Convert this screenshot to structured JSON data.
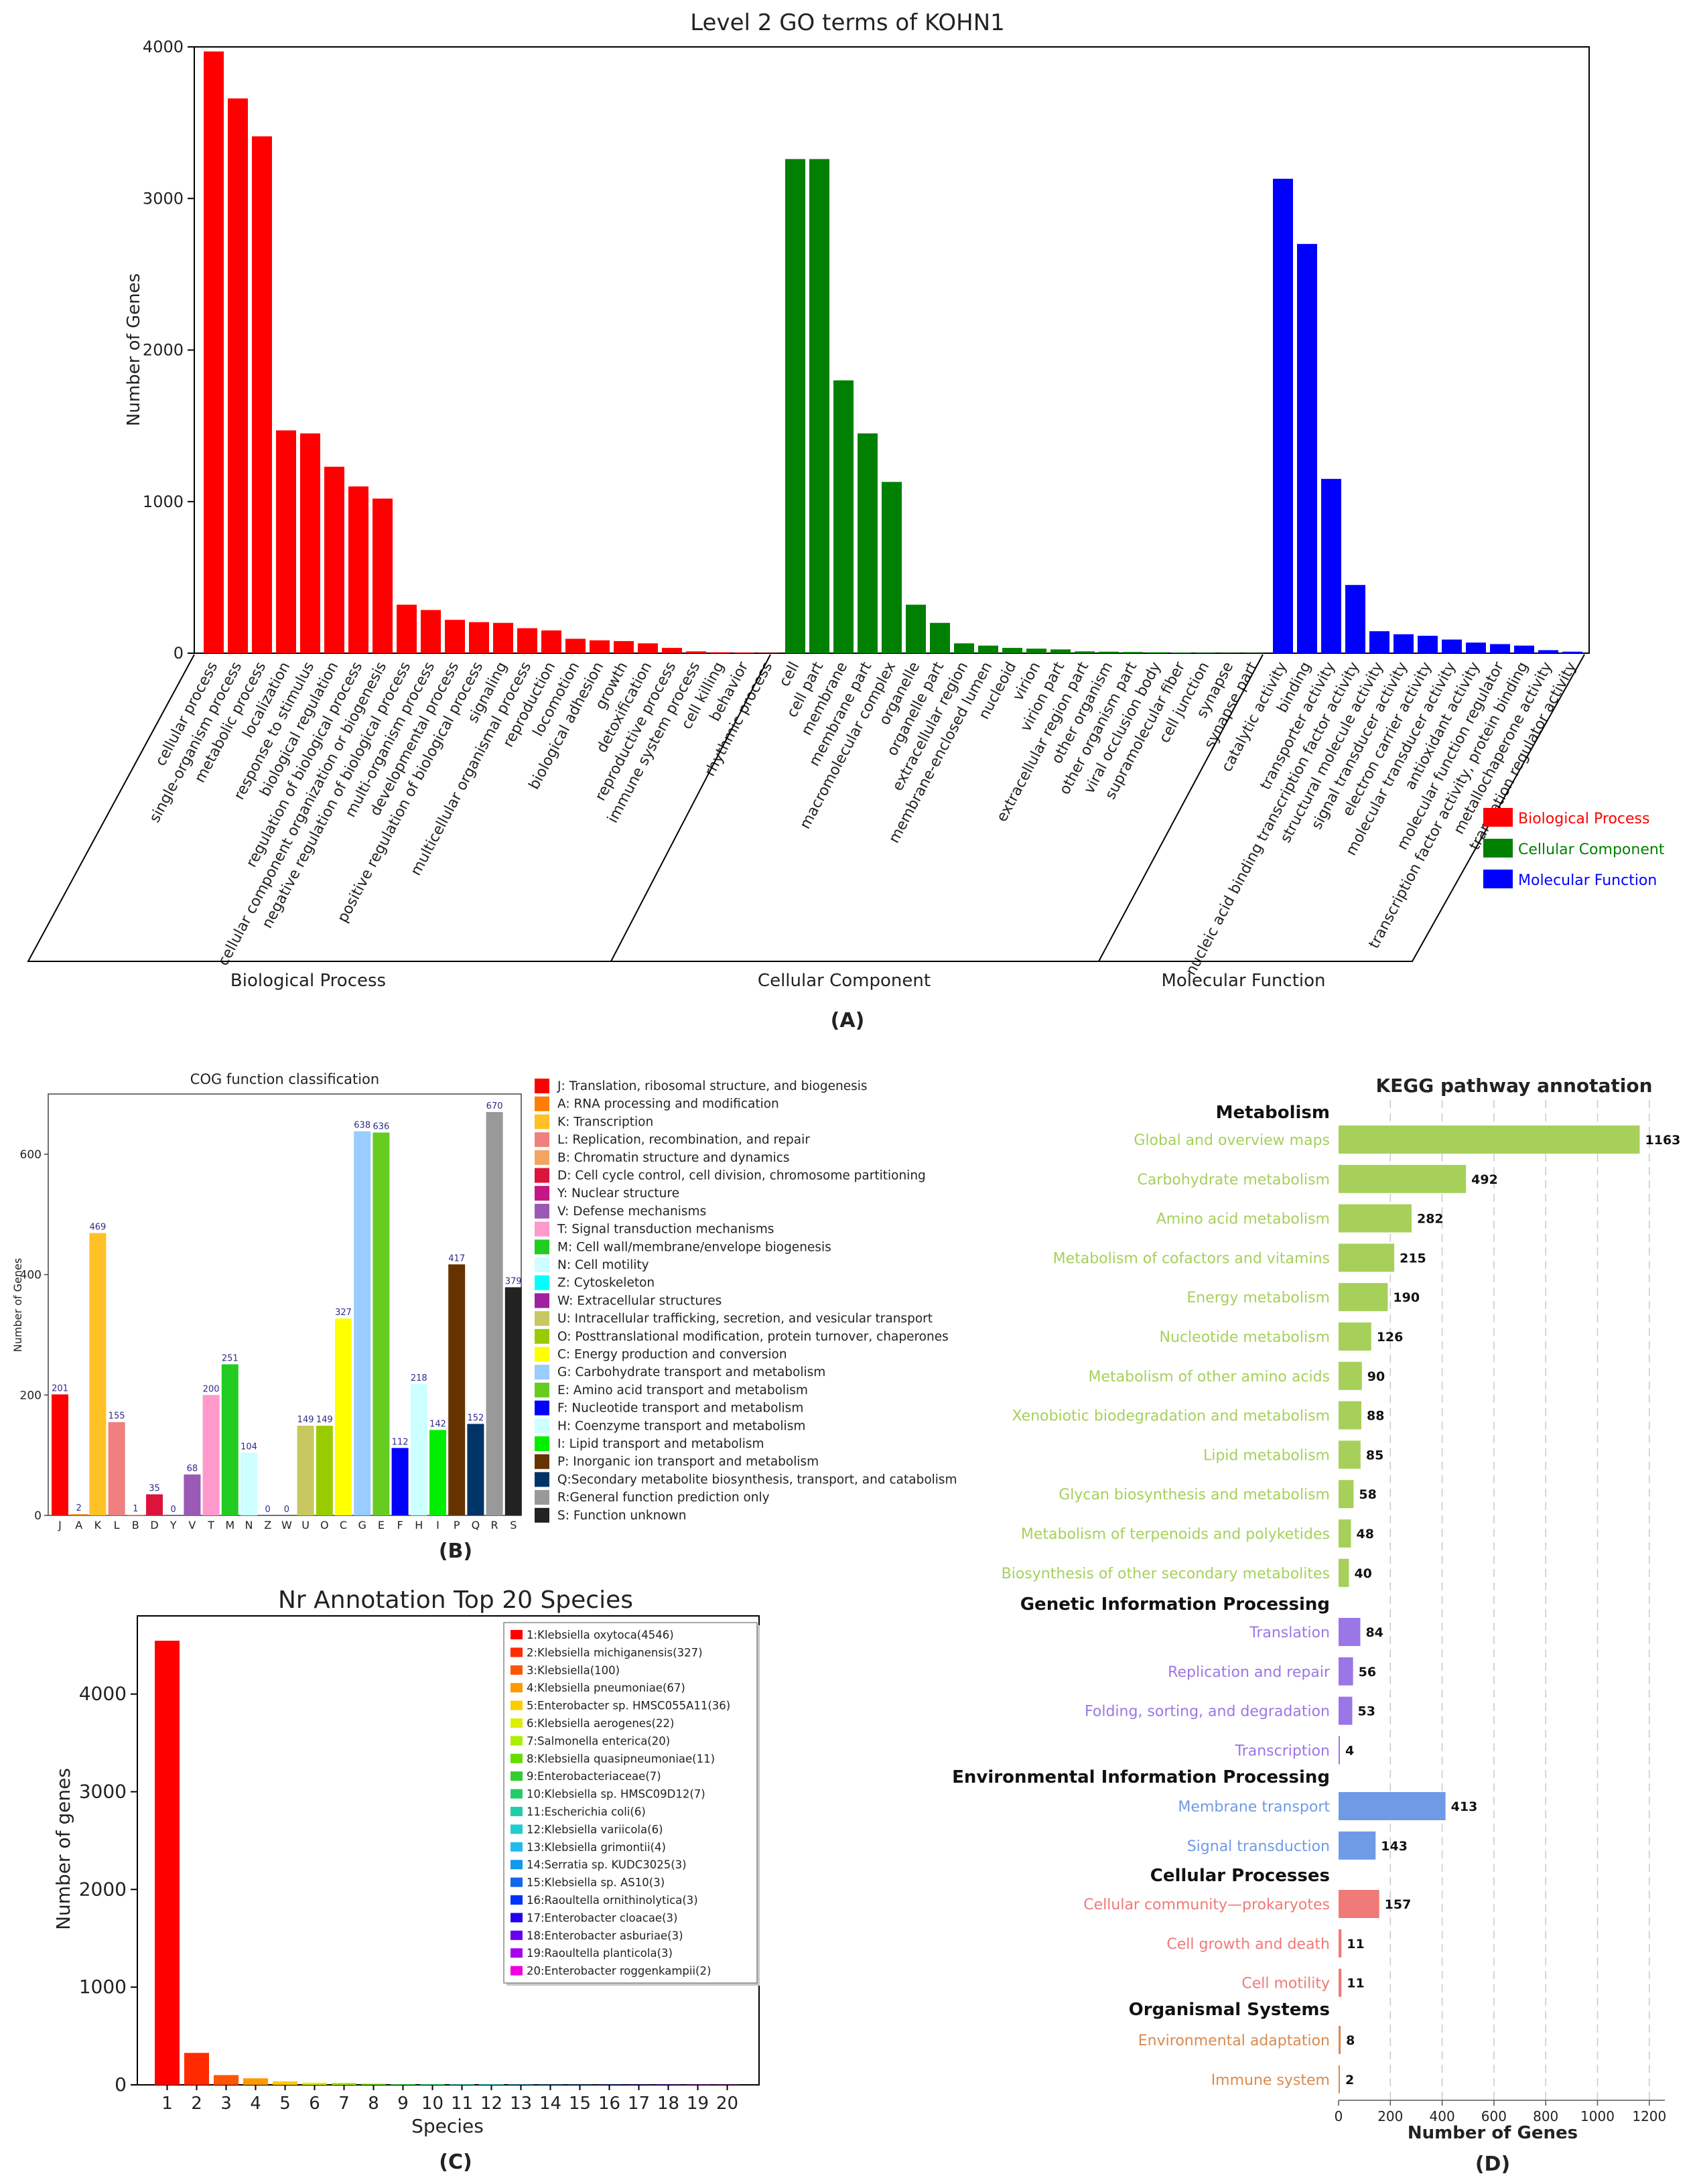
{
  "chart_data": [
    {
      "id": "go",
      "type": "bar",
      "title": "Level 2 GO terms of KOHN1",
      "ylabel": "Number of Genes",
      "ylim": [
        0,
        4000
      ],
      "yticks": [
        0,
        1000,
        2000,
        3000,
        4000
      ],
      "panel_label": "(A)",
      "groups": [
        {
          "name": "Biological Process",
          "color": "#ff0000",
          "categories": [
            "cellular process",
            "single-organism process",
            "metabolic process",
            "localization",
            "response to stimulus",
            "biological regulation",
            "regulation of biological process",
            "cellular component organization or biogenesis",
            "negative regulation of biological process",
            "multi-organism process",
            "developmental process",
            "positive regulation of biological process",
            "signaling",
            "multicellular organismal process",
            "reproduction",
            "locomotion",
            "biological adhesion",
            "growth",
            "detoxification",
            "reproductive process",
            "immune system process",
            "cell killing",
            "behavior",
            "rhythmic process"
          ],
          "values": [
            3970,
            3660,
            3410,
            1470,
            1450,
            1230,
            1100,
            1020,
            320,
            285,
            220,
            205,
            200,
            165,
            150,
            95,
            85,
            80,
            65,
            35,
            12,
            6,
            4,
            2
          ]
        },
        {
          "name": "Cellular Component",
          "color": "#008000",
          "categories": [
            "cell",
            "cell part",
            "membrane",
            "membrane part",
            "macromolecular complex",
            "organelle",
            "organelle part",
            "extracellular region",
            "membrane-enclosed lumen",
            "nucleoid",
            "virion",
            "virion part",
            "extracellular region part",
            "other organism",
            "other organism part",
            "viral occlusion body",
            "supramolecular fiber",
            "cell junction",
            "synapse",
            "synapse part"
          ],
          "values": [
            3260,
            3260,
            1800,
            1450,
            1130,
            320,
            200,
            65,
            50,
            35,
            30,
            25,
            12,
            10,
            8,
            6,
            4,
            3,
            2,
            2
          ]
        },
        {
          "name": "Molecular Function",
          "color": "#0000ff",
          "categories": [
            "catalytic activity",
            "binding",
            "transporter activity",
            "nucleic acid binding transcription factor activity",
            "structural molecule activity",
            "signal transducer activity",
            "electron carrier activity",
            "molecular transducer activity",
            "antioxidant activity",
            "molecular function regulator",
            "transcription factor activity, protein binding",
            "metallochaperone activity",
            "translation regulator activity"
          ],
          "values": [
            3130,
            2700,
            1150,
            450,
            145,
            125,
            115,
            90,
            70,
            60,
            50,
            20,
            10
          ]
        }
      ],
      "legend": [
        "Biological Process",
        "Cellular Component",
        "Molecular Function"
      ],
      "legend_position": "right"
    },
    {
      "id": "cog",
      "type": "bar",
      "title": "COG function classification",
      "ylabel": "Number of Genes",
      "ylim": [
        0,
        700
      ],
      "yticks": [
        0,
        200,
        400,
        600
      ],
      "panel_label": "(B)",
      "categories": [
        "J",
        "A",
        "K",
        "L",
        "B",
        "D",
        "Y",
        "V",
        "T",
        "M",
        "N",
        "Z",
        "W",
        "U",
        "O",
        "C",
        "G",
        "E",
        "F",
        "H",
        "I",
        "P",
        "Q",
        "R",
        "S"
      ],
      "values": [
        201,
        2,
        469,
        155,
        1,
        35,
        0,
        68,
        200,
        251,
        104,
        0,
        0,
        149,
        149,
        327,
        638,
        636,
        112,
        218,
        142,
        417,
        152,
        670,
        379
      ],
      "colors": [
        "#ff0000",
        "#ff7f00",
        "#ffc125",
        "#f08080",
        "#f4a460",
        "#dc143c",
        "#c71585",
        "#9b59b6",
        "#ff99cc",
        "#22cc22",
        "#ccffff",
        "#00ffff",
        "#a020a0",
        "#c8c860",
        "#99cc00",
        "#ffff00",
        "#99ccff",
        "#66cc22",
        "#0000ff",
        "#ccffff",
        "#00ee00",
        "#663300",
        "#003366",
        "#999999",
        "#222222"
      ],
      "legend_position": "right",
      "legend": [
        "J: Translation, ribosomal structure, and biogenesis",
        "A: RNA processing and modification",
        "K: Transcription",
        "L: Replication, recombination, and repair",
        "B: Chromatin structure and dynamics",
        "D: Cell cycle control, cell division, chromosome partitioning",
        "Y: Nuclear structure",
        "V: Defense mechanisms",
        "T: Signal transduction mechanisms",
        "M: Cell wall/membrane/envelope biogenesis",
        "N: Cell motility",
        "Z: Cytoskeleton",
        "W: Extracellular structures",
        "U: Intracellular trafficking, secretion, and vesicular transport",
        "O: Posttranslational modification, protein turnover, chaperones",
        "C: Energy production and conversion",
        "G: Carbohydrate transport and metabolism",
        "E: Amino acid transport and metabolism",
        "F: Nucleotide transport and metabolism",
        "H: Coenzyme transport and metabolism",
        "I: Lipid transport and metabolism",
        "P: Inorganic ion transport and metabolism",
        "Q:Secondary metabolite biosynthesis, transport, and catabolism",
        "R:General function prediction only",
        "S: Function unknown"
      ]
    },
    {
      "id": "nr",
      "type": "bar",
      "title": "Nr Annotation Top 20 Species",
      "xlabel": "Species",
      "ylabel": "Number of genes",
      "ylim": [
        0,
        4800
      ],
      "yticks": [
        0,
        1000,
        2000,
        3000,
        4000
      ],
      "panel_label": "(C)",
      "categories": [
        "1",
        "2",
        "3",
        "4",
        "5",
        "6",
        "7",
        "8",
        "9",
        "10",
        "11",
        "12",
        "13",
        "14",
        "15",
        "16",
        "17",
        "18",
        "19",
        "20"
      ],
      "values": [
        4546,
        327,
        100,
        67,
        36,
        22,
        20,
        11,
        7,
        7,
        6,
        6,
        4,
        3,
        3,
        3,
        3,
        3,
        3,
        2
      ],
      "colors": [
        "#ff0000",
        "#ff2a00",
        "#ff5500",
        "#ff9900",
        "#ffcc00",
        "#ddee00",
        "#aaee00",
        "#66dd00",
        "#33cc33",
        "#22cc66",
        "#22ccaa",
        "#22cccc",
        "#22bbee",
        "#1199ee",
        "#1166ee",
        "#0033ff",
        "#2200ee",
        "#6600ee",
        "#aa00ee",
        "#ee00dd"
      ],
      "legend_position": "top-right",
      "legend": [
        "1:Klebsiella oxytoca(4546)",
        "2:Klebsiella michiganensis(327)",
        "3:Klebsiella(100)",
        "4:Klebsiella pneumoniae(67)",
        "5:Enterobacter sp. HMSC055A11(36)",
        "6:Klebsiella aerogenes(22)",
        "7:Salmonella enterica(20)",
        "8:Klebsiella quasipneumoniae(11)",
        "9:Enterobacteriaceae(7)",
        "10:Klebsiella sp. HMSC09D12(7)",
        "11:Escherichia coli(6)",
        "12:Klebsiella variicola(6)",
        "13:Klebsiella grimontii(4)",
        "14:Serratia sp. KUDC3025(3)",
        "15:Klebsiella sp. AS10(3)",
        "16:Raoultella ornithinolytica(3)",
        "17:Enterobacter cloacae(3)",
        "18:Enterobacter asburiae(3)",
        "19:Raoultella planticola(3)",
        "20:Enterobacter roggenkampii(2)"
      ]
    },
    {
      "id": "kegg",
      "type": "bar",
      "orientation": "horizontal",
      "title": "KEGG pathway annotation",
      "xlabel": "Number of Genes",
      "xlim": [
        0,
        1260
      ],
      "xticks": [
        0,
        200,
        400,
        600,
        800,
        1000,
        1200
      ],
      "panel_label": "(D)",
      "groups": [
        {
          "name": "Metabolism",
          "color": "#a6d05a",
          "categories": [
            "Global and overview maps",
            "Carbohydrate metabolism",
            "Amino acid metabolism",
            "Metabolism of cofactors and vitamins",
            "Energy metabolism",
            "Nucleotide metabolism",
            "Metabolism of other amino acids",
            "Xenobiotic biodegradation and metabolism",
            "Lipid metabolism",
            "Glycan biosynthesis and metabolism",
            "Metabolism of terpenoids and polyketides",
            "Biosynthesis of other secondary metabolites"
          ],
          "values": [
            1163,
            492,
            282,
            215,
            190,
            126,
            90,
            88,
            85,
            58,
            48,
            40
          ]
        },
        {
          "name": "Genetic Information Processing",
          "color": "#9b76e6",
          "categories": [
            "Translation",
            "Replication and repair",
            "Folding, sorting, and degradation",
            "Transcription"
          ],
          "values": [
            84,
            56,
            53,
            4
          ]
        },
        {
          "name": "Environmental Information Processing",
          "color": "#6f9ae6",
          "categories": [
            "Membrane transport",
            "Signal transduction"
          ],
          "values": [
            413,
            143
          ]
        },
        {
          "name": "Cellular Processes",
          "color": "#ef7a78",
          "categories": [
            "Cellular community—prokaryotes",
            "Cell growth and death",
            "Cell motility"
          ],
          "values": [
            157,
            11,
            11
          ]
        },
        {
          "name": "Organismal Systems",
          "color": "#d98a4e",
          "categories": [
            "Environmental adaptation",
            "Immune system"
          ],
          "values": [
            8,
            2
          ]
        }
      ]
    }
  ]
}
